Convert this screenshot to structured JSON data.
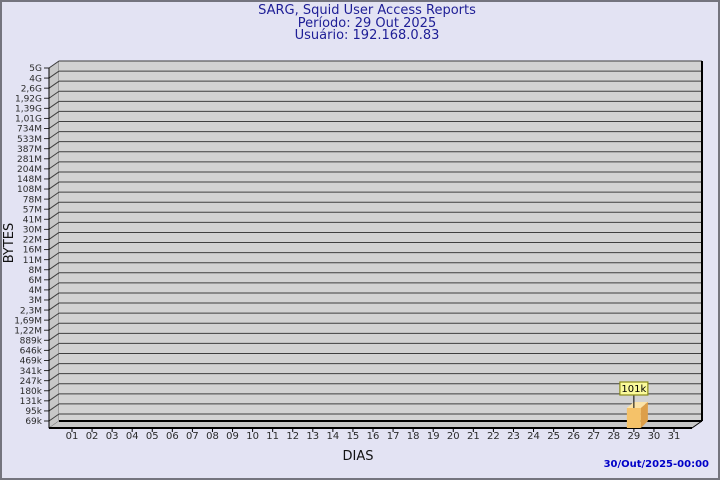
{
  "header": {
    "title": "SARG, Squid User Access Reports",
    "period": "Período: 29 Out 2025",
    "user": "Usuário: 192.168.0.83"
  },
  "footer": {
    "generated": "30/Out/2025-00:00"
  },
  "chart_data": {
    "type": "bar",
    "style": "3d",
    "title": "SARG, Squid User Access Reports",
    "xlabel": "DIAS",
    "ylabel": "BYTES",
    "y_scale": "log",
    "y_min": 69000,
    "y_max": 5000000000,
    "grid": true,
    "y_tick_labels": [
      "5G",
      "4G",
      "2,6G",
      "1,92G",
      "1,39G",
      "1,01G",
      "734M",
      "533M",
      "387M",
      "281M",
      "204M",
      "148M",
      "108M",
      "78M",
      "57M",
      "41M",
      "30M",
      "22M",
      "16M",
      "11M",
      "8M",
      "6M",
      "4M",
      "3M",
      "2,3M",
      "1,69M",
      "1,22M",
      "889k",
      "646k",
      "469k",
      "341k",
      "247k",
      "180k",
      "131k",
      "95k",
      "69k"
    ],
    "categories": [
      "01",
      "02",
      "03",
      "04",
      "05",
      "06",
      "07",
      "08",
      "09",
      "10",
      "11",
      "12",
      "13",
      "14",
      "15",
      "16",
      "17",
      "18",
      "19",
      "20",
      "21",
      "22",
      "23",
      "24",
      "25",
      "26",
      "27",
      "28",
      "29",
      "30",
      "31"
    ],
    "values": [
      0,
      0,
      0,
      0,
      0,
      0,
      0,
      0,
      0,
      0,
      0,
      0,
      0,
      0,
      0,
      0,
      0,
      0,
      0,
      0,
      0,
      0,
      0,
      0,
      0,
      0,
      0,
      0,
      101000,
      0,
      0
    ],
    "value_labels": [
      null,
      null,
      null,
      null,
      null,
      null,
      null,
      null,
      null,
      null,
      null,
      null,
      null,
      null,
      null,
      null,
      null,
      null,
      null,
      null,
      null,
      null,
      null,
      null,
      null,
      null,
      null,
      null,
      "101k",
      null,
      null
    ],
    "colors": {
      "background": "#e3e3f3",
      "border": "#74747e",
      "title_text": "#1e1e96",
      "timestamp_text": "#0000c8",
      "axis_text": "#2b2b2b",
      "axis_line": "#000000",
      "plot_bg": "#d2d2d2",
      "wall_bg": "#c7c7c7",
      "grid_line": "#3f3f3f",
      "bar_front": "#f5c269",
      "bar_side": "#dd9f4a",
      "bar_top": "#fbe3a9",
      "annotation_bg": "#fafa9b",
      "annotation_border": "#8b8b1a",
      "annotation_text": "#000000"
    }
  }
}
